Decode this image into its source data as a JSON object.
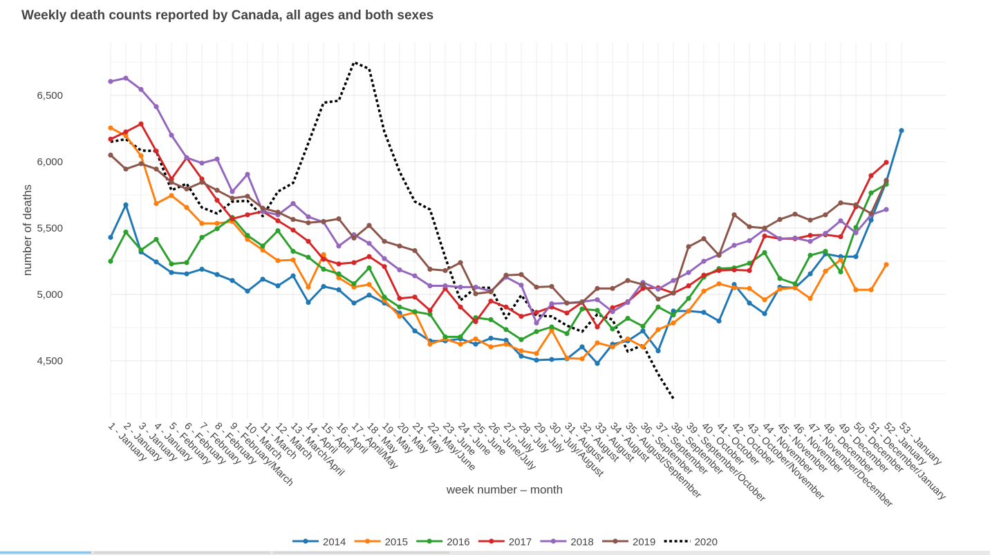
{
  "chart_data": {
    "type": "line",
    "title": "Weekly death counts reported by Canada, all ages and both sexes",
    "xlabel": "week number – month",
    "ylabel": "number of deaths",
    "ylim": [
      4100,
      6900
    ],
    "yticks": [
      4500,
      5000,
      5500,
      6000,
      6500
    ],
    "ytick_labels": [
      "4,500",
      "5,000",
      "5,500",
      "6,000",
      "6,500"
    ],
    "grid": true,
    "legend_position": "bottom",
    "categories": [
      "1 - January",
      "2 - January",
      "3 - January",
      "4 - January",
      "5 - February",
      "6 - February",
      "7 - February",
      "8 - February",
      "9 - February/March",
      "10 - March",
      "11 - March",
      "12 - March",
      "13 - March/April",
      "14 - April",
      "15 - April",
      "16 - April",
      "17 - April/May",
      "18 - May",
      "19 - May",
      "20 - May",
      "21 - May",
      "22 - May/June",
      "23 - June",
      "24 - June",
      "25 - June",
      "26 - June/July",
      "27 - July",
      "28 - July",
      "29 - July",
      "30 - July/August",
      "31 - August",
      "32 - August",
      "33 - August",
      "34 - August",
      "35 - August/September",
      "36 - September",
      "37 - September",
      "38 - September",
      "39 - September/October",
      "40 - October",
      "41 - October",
      "42 - October",
      "43 - October/November",
      "44 - November",
      "45 - November",
      "46 - November",
      "47 - November/December",
      "48 - December",
      "49 - December",
      "50 - December",
      "51 - December/January",
      "52 - January",
      "53 - January"
    ],
    "series": [
      {
        "name": "2014",
        "color": "#1f77b4",
        "dash": false,
        "markers": true,
        "values": [
          5430,
          5675,
          5320,
          5245,
          5165,
          5155,
          5190,
          5150,
          5105,
          5025,
          5115,
          5065,
          5140,
          4940,
          5060,
          5035,
          4935,
          4995,
          4935,
          4860,
          4725,
          4650,
          4650,
          4665,
          4625,
          4670,
          4655,
          4535,
          4505,
          4510,
          4515,
          4605,
          4480,
          4625,
          4650,
          4725,
          4575,
          4875,
          4875,
          4865,
          4800,
          5075,
          4935,
          4855,
          5055,
          5050,
          5155,
          5305,
          5285,
          5285,
          5560,
          5850,
          6235
        ]
      },
      {
        "name": "2015",
        "color": "#ff7f0e",
        "dash": false,
        "markers": true,
        "values": [
          6255,
          6195,
          6045,
          5685,
          5745,
          5655,
          5535,
          5535,
          5550,
          5415,
          5335,
          5255,
          5260,
          5055,
          5300,
          5125,
          5055,
          5075,
          4955,
          4835,
          4865,
          4625,
          4665,
          4625,
          4665,
          4605,
          4625,
          4575,
          4555,
          4730,
          4520,
          4515,
          4635,
          4605,
          4665,
          4605,
          4735,
          4785,
          4875,
          5025,
          5080,
          5050,
          5045,
          4960,
          5040,
          5050,
          4970,
          5175,
          5260,
          5035,
          5035,
          5225,
          null
        ]
      },
      {
        "name": "2016",
        "color": "#2ca02c",
        "dash": false,
        "markers": true,
        "values": [
          5250,
          5470,
          5335,
          5415,
          5230,
          5240,
          5430,
          5495,
          5580,
          5445,
          5365,
          5480,
          5325,
          5280,
          5190,
          5155,
          5080,
          5200,
          4980,
          4905,
          4870,
          4850,
          4680,
          4680,
          4825,
          4810,
          4735,
          4660,
          4720,
          4755,
          4705,
          4890,
          4880,
          4740,
          4820,
          4760,
          4905,
          4845,
          4970,
          5130,
          5195,
          5200,
          5235,
          5315,
          5120,
          5080,
          5295,
          5325,
          5170,
          5505,
          5765,
          5830,
          null
        ]
      },
      {
        "name": "2017",
        "color": "#d62728",
        "dash": false,
        "markers": true,
        "values": [
          6170,
          6225,
          6285,
          6080,
          5870,
          6030,
          5870,
          5710,
          5570,
          5600,
          5625,
          5555,
          5485,
          5400,
          5265,
          5230,
          5240,
          5285,
          5210,
          4970,
          4980,
          4880,
          5045,
          4905,
          4795,
          4950,
          4905,
          4835,
          4865,
          4905,
          4860,
          4940,
          4755,
          4900,
          4945,
          5045,
          5050,
          5010,
          5065,
          5145,
          5180,
          5185,
          5180,
          5440,
          5420,
          5420,
          5445,
          5450,
          5435,
          5660,
          5895,
          5995,
          null
        ]
      },
      {
        "name": "2018",
        "color": "#9467bd",
        "dash": false,
        "markers": true,
        "values": [
          6605,
          6630,
          6545,
          6415,
          6200,
          6030,
          5990,
          6020,
          5775,
          5905,
          5625,
          5600,
          5685,
          5585,
          5545,
          5365,
          5450,
          5385,
          5270,
          5185,
          5140,
          5065,
          5065,
          5055,
          5055,
          5025,
          5130,
          5070,
          4785,
          4930,
          4935,
          4945,
          4960,
          4870,
          4940,
          5090,
          5040,
          5105,
          5165,
          5250,
          5300,
          5370,
          5405,
          5490,
          5420,
          5425,
          5400,
          5460,
          5555,
          5465,
          5600,
          5640,
          null
        ]
      },
      {
        "name": "2019",
        "color": "#8c564b",
        "dash": false,
        "markers": true,
        "values": [
          6050,
          5945,
          5985,
          5945,
          5845,
          5795,
          5845,
          5785,
          5725,
          5740,
          5650,
          5620,
          5565,
          5540,
          5550,
          5570,
          5425,
          5520,
          5400,
          5365,
          5330,
          5190,
          5180,
          5240,
          5005,
          5020,
          5145,
          5150,
          5055,
          5060,
          4935,
          4940,
          5045,
          5045,
          5105,
          5075,
          4965,
          5010,
          5360,
          5420,
          5295,
          5600,
          5510,
          5500,
          5565,
          5605,
          5560,
          5600,
          5690,
          5675,
          5610,
          5860,
          null
        ]
      },
      {
        "name": "2020",
        "color": "#000000",
        "dash": true,
        "markers": false,
        "values": [
          6150,
          6170,
          6085,
          6080,
          5785,
          5835,
          5655,
          5610,
          5700,
          5705,
          5590,
          5775,
          5840,
          6140,
          6445,
          6460,
          6750,
          6700,
          6225,
          5925,
          5700,
          5640,
          5280,
          4955,
          5050,
          5050,
          4820,
          4995,
          4840,
          4835,
          4765,
          4720,
          4850,
          4810,
          4570,
          4620,
          4400,
          4215,
          null,
          null,
          null,
          null,
          null,
          null,
          null,
          null,
          null,
          null,
          null,
          null,
          null,
          null,
          null
        ]
      }
    ]
  }
}
